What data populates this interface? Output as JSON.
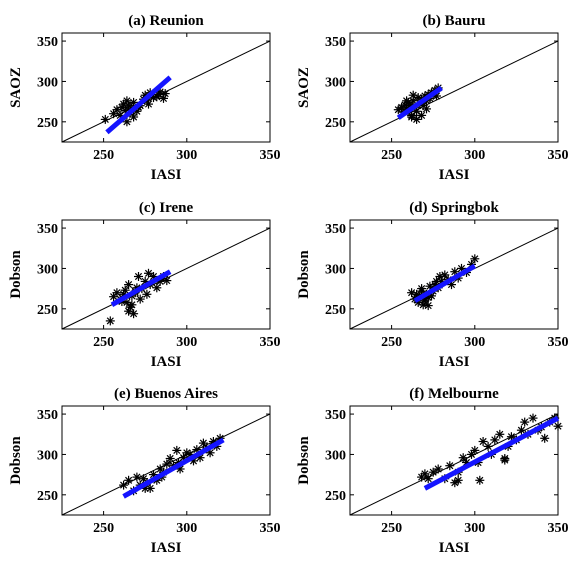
{
  "colors": {
    "fit_line": "#1414ff",
    "identity_line": "#000000",
    "markers": "#000000",
    "axes": "#000000"
  },
  "chart_data": [
    {
      "type": "scatter",
      "title": "(a) Reunion",
      "xlabel": "IASI",
      "ylabel": "SAOZ",
      "xlim": [
        225,
        350
      ],
      "ylim": [
        225,
        360
      ],
      "xticks": [
        "250",
        "300",
        "350"
      ],
      "yticks": [
        "250",
        "300",
        "350"
      ],
      "identity_line": [
        [
          225,
          225
        ],
        [
          350,
          350
        ]
      ],
      "fit_line": [
        [
          252,
          237
        ],
        [
          290,
          305
        ]
      ],
      "x": [
        251,
        256,
        258,
        260,
        261,
        262,
        263,
        264,
        264,
        265,
        266,
        267,
        268,
        268,
        270,
        271,
        272,
        274,
        275,
        276,
        277,
        278,
        280,
        282,
        283,
        284,
        286,
        287
      ],
      "y": [
        253,
        260,
        265,
        258,
        268,
        272,
        264,
        276,
        250,
        270,
        262,
        267,
        274,
        256,
        263,
        268,
        270,
        278,
        283,
        276,
        272,
        286,
        280,
        281,
        284,
        287,
        279,
        285
      ]
    },
    {
      "type": "scatter",
      "title": "(b) Bauru",
      "xlabel": "IASI",
      "ylabel": "SAOZ",
      "xlim": [
        225,
        350
      ],
      "ylim": [
        225,
        360
      ],
      "xticks": [
        "250",
        "300",
        "350"
      ],
      "yticks": [
        "250",
        "300",
        "350"
      ],
      "identity_line": [
        [
          225,
          225
        ],
        [
          350,
          350
        ]
      ],
      "fit_line": [
        [
          254,
          255
        ],
        [
          280,
          292
        ]
      ],
      "x": [
        254,
        256,
        257,
        258,
        259,
        260,
        261,
        262,
        263,
        264,
        265,
        266,
        267,
        268,
        269,
        270,
        271,
        272,
        273,
        274,
        275,
        276,
        277,
        278,
        262,
        265,
        268,
        271,
        259,
        263
      ],
      "y": [
        265,
        268,
        262,
        271,
        266,
        274,
        270,
        256,
        276,
        268,
        263,
        280,
        273,
        278,
        270,
        282,
        276,
        284,
        279,
        286,
        283,
        289,
        282,
        292,
        258,
        253,
        258,
        266,
        276,
        283
      ]
    },
    {
      "type": "scatter",
      "title": "(c) Irene",
      "xlabel": "IASI",
      "ylabel": "Dobson",
      "xlim": [
        225,
        350
      ],
      "ylim": [
        225,
        360
      ],
      "xticks": [
        "250",
        "300",
        "350"
      ],
      "yticks": [
        "250",
        "300",
        "350"
      ],
      "identity_line": [
        [
          225,
          225
        ],
        [
          350,
          350
        ]
      ],
      "fit_line": [
        [
          255,
          255
        ],
        [
          290,
          296
        ]
      ],
      "x": [
        254,
        256,
        258,
        260,
        261,
        262,
        263,
        264,
        265,
        266,
        267,
        268,
        269,
        270,
        271,
        272,
        273,
        275,
        276,
        277,
        278,
        280,
        282,
        284,
        286,
        288,
        265,
        267,
        269
      ],
      "y": [
        235,
        265,
        270,
        262,
        259,
        268,
        273,
        258,
        280,
        252,
        266,
        244,
        270,
        276,
        290,
        262,
        275,
        284,
        268,
        294,
        280,
        290,
        276,
        284,
        290,
        285,
        247,
        255,
        272
      ]
    },
    {
      "type": "scatter",
      "title": "(d) Springbok",
      "xlabel": "IASI",
      "ylabel": "Dobson",
      "xlim": [
        225,
        350
      ],
      "ylim": [
        225,
        360
      ],
      "xticks": [
        "250",
        "300",
        "350"
      ],
      "yticks": [
        "250",
        "300",
        "350"
      ],
      "identity_line": [
        [
          225,
          225
        ],
        [
          350,
          350
        ]
      ],
      "fit_line": [
        [
          264,
          260
        ],
        [
          300,
          303
        ]
      ],
      "x": [
        262,
        264,
        265,
        266,
        267,
        268,
        269,
        270,
        271,
        272,
        273,
        274,
        275,
        276,
        277,
        278,
        279,
        280,
        282,
        284,
        286,
        288,
        290,
        292,
        295,
        298,
        300,
        268,
        270,
        272
      ],
      "y": [
        270,
        262,
        268,
        258,
        265,
        272,
        255,
        262,
        268,
        254,
        278,
        266,
        272,
        280,
        284,
        276,
        290,
        284,
        292,
        286,
        280,
        296,
        288,
        300,
        295,
        305,
        312,
        275,
        260,
        264
      ]
    },
    {
      "type": "scatter",
      "title": "(e) Buenos Aires",
      "xlabel": "IASI",
      "ylabel": "Dobson",
      "xlim": [
        225,
        350
      ],
      "ylim": [
        225,
        360
      ],
      "xticks": [
        "250",
        "300",
        "350"
      ],
      "yticks": [
        "250",
        "300",
        "350"
      ],
      "identity_line": [
        [
          225,
          225
        ],
        [
          350,
          350
        ]
      ],
      "fit_line": [
        [
          262,
          248
        ],
        [
          322,
          318
        ]
      ],
      "x": [
        262,
        265,
        268,
        270,
        272,
        274,
        276,
        278,
        280,
        282,
        284,
        286,
        288,
        290,
        292,
        294,
        296,
        298,
        300,
        302,
        304,
        306,
        308,
        310,
        312,
        314,
        316,
        318,
        320,
        275,
        285,
        295
      ],
      "y": [
        262,
        268,
        255,
        272,
        262,
        270,
        265,
        258,
        275,
        268,
        282,
        278,
        288,
        295,
        286,
        305,
        282,
        296,
        302,
        300,
        292,
        306,
        296,
        314,
        308,
        302,
        316,
        310,
        320,
        258,
        272,
        290
      ]
    },
    {
      "type": "scatter",
      "title": "(f) Melbourne",
      "xlabel": "IASI",
      "ylabel": "Dobson",
      "xlim": [
        225,
        350
      ],
      "ylim": [
        225,
        360
      ],
      "xticks": [
        "250",
        "300",
        "350"
      ],
      "yticks": [
        "250",
        "300",
        "350"
      ],
      "identity_line": [
        [
          225,
          225
        ],
        [
          350,
          350
        ]
      ],
      "fit_line": [
        [
          270,
          258
        ],
        [
          350,
          345
        ]
      ],
      "x": [
        268,
        270,
        272,
        275,
        278,
        282,
        285,
        288,
        290,
        293,
        295,
        298,
        300,
        302,
        305,
        308,
        310,
        312,
        315,
        318,
        320,
        322,
        325,
        328,
        330,
        332,
        335,
        338,
        340,
        342,
        345,
        348,
        350,
        290,
        303,
        318
      ],
      "y": [
        272,
        276,
        270,
        278,
        282,
        270,
        286,
        265,
        278,
        296,
        290,
        300,
        305,
        290,
        316,
        310,
        300,
        318,
        325,
        295,
        310,
        322,
        318,
        330,
        340,
        325,
        345,
        330,
        334,
        320,
        340,
        345,
        335,
        268,
        268,
        293
      ]
    }
  ]
}
